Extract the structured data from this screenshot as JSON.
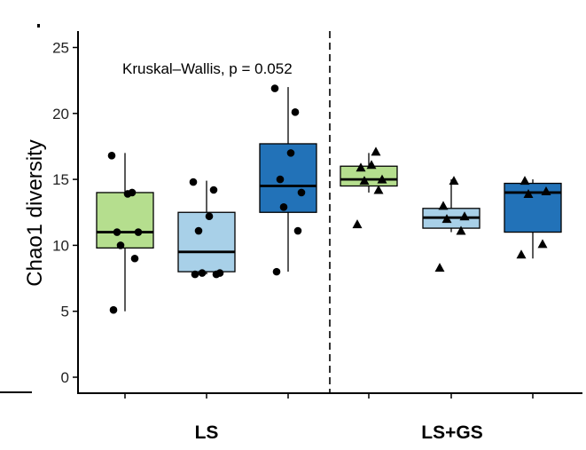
{
  "chart_data": {
    "type": "box",
    "annotation": "Kruskal–Wallis, p = 0.052",
    "ylabel": "Chao1 diversity",
    "xlabel": "",
    "ylim": [
      -1,
      26
    ],
    "yticks": [
      0,
      5,
      10,
      15,
      20,
      25
    ],
    "groups": [
      "LS",
      "LS+GS"
    ],
    "colors": [
      "#b5de8e",
      "#a8d0e8",
      "#2272b8"
    ],
    "series": [
      {
        "group": "LS",
        "color": "#b5de8e",
        "marker": "circle",
        "box": {
          "min": 5,
          "q1": 9.8,
          "median": 11,
          "q3": 14,
          "max": 17
        },
        "points": [
          5.1,
          9,
          10,
          11,
          11,
          13.9,
          14,
          16.8
        ]
      },
      {
        "group": "LS",
        "color": "#a8d0e8",
        "marker": "circle",
        "box": {
          "min": 7.8,
          "q1": 8,
          "median": 9.5,
          "q3": 12.5,
          "max": 14.9
        },
        "points": [
          7.8,
          7.8,
          7.9,
          7.9,
          11.1,
          12.2,
          14.2,
          14.8
        ]
      },
      {
        "group": "LS",
        "color": "#2272b8",
        "marker": "circle",
        "box": {
          "min": 8,
          "q1": 12.5,
          "median": 14.5,
          "q3": 17.7,
          "max": 22
        },
        "points": [
          8,
          11.1,
          12.9,
          14,
          15,
          17,
          20.1,
          21.9
        ]
      },
      {
        "group": "LS+GS",
        "color": "#b5de8e",
        "marker": "triangle",
        "box": {
          "min": 14,
          "q1": 14.5,
          "median": 15,
          "q3": 16,
          "max": 17
        },
        "points": [
          11.6,
          14.2,
          14.9,
          15,
          15.9,
          16.1,
          17.1
        ]
      },
      {
        "group": "LS+GS",
        "color": "#a8d0e8",
        "marker": "triangle",
        "box": {
          "min": 11,
          "q1": 11.3,
          "median": 12.1,
          "q3": 12.8,
          "max": 15
        },
        "points": [
          8.3,
          11.1,
          12,
          12.2,
          13,
          14.9
        ]
      },
      {
        "group": "LS+GS",
        "color": "#2272b8",
        "marker": "triangle",
        "box": {
          "min": 9,
          "q1": 11,
          "median": 14,
          "q3": 14.7,
          "max": 15
        },
        "points": [
          9.3,
          10.1,
          13.9,
          14.1,
          14.9
        ]
      }
    ]
  }
}
